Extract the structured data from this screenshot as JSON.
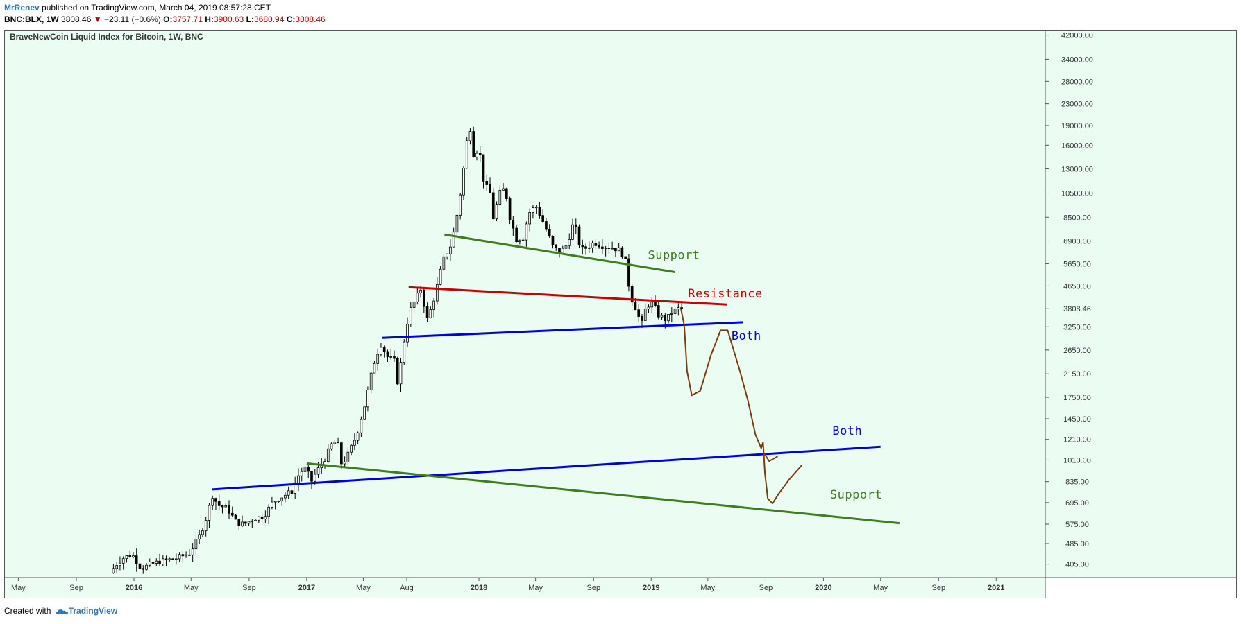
{
  "header": {
    "author": "MrRenev",
    "published_text": "published on TradingView.com, March 04, 2019 08:57:28 CET",
    "symbol": "BNC:BLX, 1W",
    "last": "3808.46",
    "change": "−23.11 (−0.6%)",
    "o_label": "O:",
    "o_value": "3757.71",
    "h_label": "H:",
    "h_value": "3900.63",
    "l_label": "L:",
    "l_value": "3680.94",
    "c_label": "C:",
    "c_value": "3808.46"
  },
  "footer": {
    "created_with": "Created with",
    "brand": "TradingView"
  },
  "colors": {
    "background": "#ebfdf3",
    "support": "#3f7e1f",
    "resistance": "#cc0000",
    "both": "#0000e6",
    "projection": "#7a3c0a",
    "candle": "#000000"
  },
  "chart_data": {
    "type": "candlestick",
    "title": "BraveNewCoin Liquid Index for Bitcoin, 1W, BNC",
    "price_scale": "log",
    "ylim": [
      360,
      44000
    ],
    "xlim": [
      "2015-04-01",
      "2021-04-15"
    ],
    "y_ticks": [
      "42000.00",
      "34000.00",
      "28000.00",
      "23000.00",
      "19000.00",
      "16000.00",
      "13000.00",
      "10500.00",
      "8500.00",
      "6900.00",
      "5650.00",
      "4650.00",
      "3250.00",
      "2650.00",
      "2150.00",
      "1750.00",
      "1450.00",
      "1210.00",
      "1010.00",
      "835.00",
      "695.00",
      "575.00",
      "485.00",
      "405.00"
    ],
    "last_price_label": "3808.46",
    "x_ticks": [
      {
        "date": "2015-05-01",
        "label": "May",
        "bold": false
      },
      {
        "date": "2015-09-01",
        "label": "Sep",
        "bold": false
      },
      {
        "date": "2016-01-01",
        "label": "2016",
        "bold": true
      },
      {
        "date": "2016-05-01",
        "label": "May",
        "bold": false
      },
      {
        "date": "2016-09-01",
        "label": "Sep",
        "bold": false
      },
      {
        "date": "2017-01-01",
        "label": "2017",
        "bold": true
      },
      {
        "date": "2017-05-01",
        "label": "May",
        "bold": false
      },
      {
        "date": "2017-08-01",
        "label": "Aug",
        "bold": false
      },
      {
        "date": "2018-01-01",
        "label": "2018",
        "bold": true
      },
      {
        "date": "2018-05-01",
        "label": "May",
        "bold": false
      },
      {
        "date": "2018-09-01",
        "label": "Sep",
        "bold": false
      },
      {
        "date": "2019-01-01",
        "label": "2019",
        "bold": true
      },
      {
        "date": "2019-05-01",
        "label": "May",
        "bold": false
      },
      {
        "date": "2019-09-01",
        "label": "Sep",
        "bold": false
      },
      {
        "date": "2020-01-01",
        "label": "2020",
        "bold": true
      },
      {
        "date": "2020-05-01",
        "label": "May",
        "bold": false
      },
      {
        "date": "2020-09-01",
        "label": "Sep",
        "bold": false
      },
      {
        "date": "2021-01-01",
        "label": "2021",
        "bold": true
      }
    ],
    "price_path": [
      [
        "2015-11-15",
        375
      ],
      [
        "2015-12-01",
        410
      ],
      [
        "2015-12-15",
        430
      ],
      [
        "2016-01-01",
        440
      ],
      [
        "2016-01-20",
        390
      ],
      [
        "2016-02-10",
        405
      ],
      [
        "2016-03-01",
        415
      ],
      [
        "2016-04-01",
        425
      ],
      [
        "2016-05-01",
        445
      ],
      [
        "2016-05-25",
        530
      ],
      [
        "2016-06-10",
        640
      ],
      [
        "2016-06-17",
        750
      ],
      [
        "2016-07-01",
        680
      ],
      [
        "2016-07-20",
        660
      ],
      [
        "2016-08-10",
        580
      ],
      [
        "2016-08-25",
        575
      ],
      [
        "2016-09-15",
        605
      ],
      [
        "2016-10-05",
        615
      ],
      [
        "2016-10-25",
        700
      ],
      [
        "2016-11-15",
        735
      ],
      [
        "2016-12-05",
        770
      ],
      [
        "2016-12-20",
        900
      ],
      [
        "2017-01-05",
        950
      ],
      [
        "2017-01-12",
        820
      ],
      [
        "2017-01-25",
        910
      ],
      [
        "2017-02-10",
        1000
      ],
      [
        "2017-02-25",
        1150
      ],
      [
        "2017-03-10",
        1200
      ],
      [
        "2017-03-20",
        960
      ],
      [
        "2017-04-01",
        1050
      ],
      [
        "2017-04-20",
        1250
      ],
      [
        "2017-05-10",
        1700
      ],
      [
        "2017-05-25",
        2300
      ],
      [
        "2017-06-10",
        2800
      ],
      [
        "2017-06-25",
        2500
      ],
      [
        "2017-07-10",
        2400
      ],
      [
        "2017-07-17",
        1950
      ],
      [
        "2017-07-28",
        2750
      ],
      [
        "2017-08-10",
        3700
      ],
      [
        "2017-08-25",
        4200
      ],
      [
        "2017-09-05",
        4600
      ],
      [
        "2017-09-15",
        3400
      ],
      [
        "2017-09-25",
        3800
      ],
      [
        "2017-10-05",
        4400
      ],
      [
        "2017-10-20",
        5800
      ],
      [
        "2017-11-05",
        6600
      ],
      [
        "2017-11-15",
        7800
      ],
      [
        "2017-11-28",
        11000
      ],
      [
        "2017-12-10",
        16500
      ],
      [
        "2017-12-17",
        18500
      ],
      [
        "2017-12-24",
        14800
      ],
      [
        "2018-01-05",
        15500
      ],
      [
        "2018-01-15",
        11500
      ],
      [
        "2018-01-28",
        10500
      ],
      [
        "2018-02-05",
        8200
      ],
      [
        "2018-02-15",
        10400
      ],
      [
        "2018-03-01",
        11000
      ],
      [
        "2018-03-10",
        8600
      ],
      [
        "2018-03-25",
        7000
      ],
      [
        "2018-04-08",
        7100
      ],
      [
        "2018-04-20",
        8800
      ],
      [
        "2018-05-05",
        9400
      ],
      [
        "2018-05-20",
        8200
      ],
      [
        "2018-06-10",
        6600
      ],
      [
        "2018-06-25",
        6200
      ],
      [
        "2018-07-10",
        6700
      ],
      [
        "2018-07-25",
        8200
      ],
      [
        "2018-08-08",
        6400
      ],
      [
        "2018-08-20",
        6500
      ],
      [
        "2018-09-05",
        6800
      ],
      [
        "2018-09-25",
        6600
      ],
      [
        "2018-10-15",
        6500
      ],
      [
        "2018-11-01",
        6350
      ],
      [
        "2018-11-14",
        5600
      ],
      [
        "2018-11-20",
        4300
      ],
      [
        "2018-12-01",
        3900
      ],
      [
        "2018-12-15",
        3300
      ],
      [
        "2018-12-25",
        3900
      ],
      [
        "2019-01-08",
        4000
      ],
      [
        "2019-01-20",
        3600
      ],
      [
        "2019-02-05",
        3450
      ],
      [
        "2019-02-18",
        3700
      ],
      [
        "2019-03-03",
        3808.46
      ]
    ],
    "trendlines": [
      {
        "label": "Support",
        "color": "#3f7e1f",
        "from": [
          "2017-10-20",
          7300
        ],
        "to": [
          "2019-02-20",
          5250
        ],
        "label_at": [
          "2018-12-25",
          5900
        ]
      },
      {
        "label": "Resistance",
        "color": "#cc0000",
        "from": [
          "2017-08-05",
          4600
        ],
        "to": [
          "2019-06-10",
          3950
        ],
        "label_at": [
          "2019-03-20",
          4200
        ]
      },
      {
        "label": "Both",
        "color": "#0000e6",
        "from": [
          "2017-06-10",
          2950
        ],
        "to": [
          "2019-07-15",
          3380
        ],
        "label_at": [
          "2019-06-20",
          2900
        ]
      },
      {
        "label": "Both",
        "color": "#0000e6",
        "from": [
          "2016-06-15",
          780
        ],
        "to": [
          "2020-05-01",
          1135
        ],
        "label_at": [
          "2020-01-20",
          1260
        ]
      },
      {
        "label": "Support",
        "color": "#3f7e1f",
        "from": [
          "2017-01-01",
          980
        ],
        "to": [
          "2020-06-10",
          580
        ],
        "label_at": [
          "2020-01-15",
          720
        ]
      }
    ],
    "projection": [
      [
        "2019-03-05",
        3800
      ],
      [
        "2019-03-12",
        3300
      ],
      [
        "2019-03-18",
        2200
      ],
      [
        "2019-03-28",
        1780
      ],
      [
        "2019-04-15",
        1850
      ],
      [
        "2019-05-08",
        2550
      ],
      [
        "2019-05-28",
        3150
      ],
      [
        "2019-06-12",
        3150
      ],
      [
        "2019-06-22",
        2750
      ],
      [
        "2019-07-08",
        2200
      ],
      [
        "2019-07-25",
        1700
      ],
      [
        "2019-08-10",
        1260
      ],
      [
        "2019-08-22",
        1120
      ],
      [
        "2019-08-26",
        1180
      ],
      [
        "2019-08-30",
        900
      ],
      [
        "2019-09-05",
        720
      ],
      [
        "2019-09-15",
        690
      ],
      [
        "2019-09-28",
        750
      ],
      [
        "2019-10-20",
        850
      ],
      [
        "2019-11-15",
        960
      ]
    ],
    "projection_spur": [
      [
        "2019-08-30",
        1060
      ],
      [
        "2019-09-08",
        1000
      ],
      [
        "2019-09-25",
        1040
      ]
    ]
  }
}
